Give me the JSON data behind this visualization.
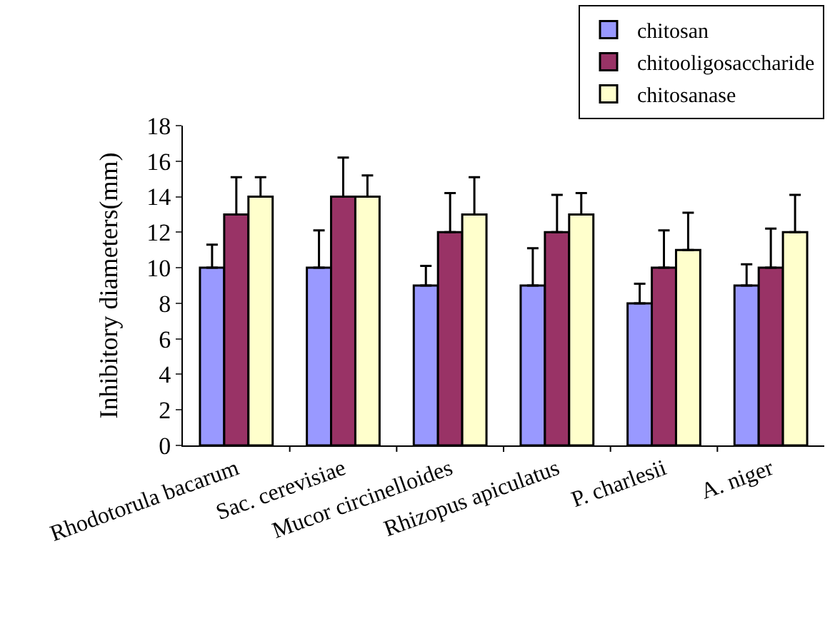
{
  "chart_data": {
    "type": "bar",
    "ylabel": "Inhibitory diameters(mm)",
    "categories": [
      "Rhodotorula bacarum",
      "Sac. cerevisiae",
      "Mucor circinelloides",
      "Rhizopus apiculatus",
      "P. charlesii",
      "A. niger"
    ],
    "series": [
      {
        "name": "chitosan",
        "color": "#9999ff",
        "values": [
          10,
          10,
          9,
          9,
          8,
          9
        ],
        "errors": [
          [
            10,
            11.3
          ],
          [
            10,
            12.1
          ],
          [
            9,
            10.1
          ],
          [
            9,
            11.1
          ],
          [
            8,
            9.1
          ],
          [
            9,
            10.2
          ]
        ]
      },
      {
        "name": "chitooligosaccharide",
        "color": "#993366",
        "values": [
          13,
          14,
          12,
          12,
          10,
          10
        ],
        "errors": [
          [
            13,
            15.1
          ],
          [
            14,
            16.2
          ],
          [
            12,
            14.2
          ],
          [
            12,
            14.1
          ],
          [
            10,
            12.1
          ],
          [
            10,
            12.2
          ]
        ]
      },
      {
        "name": "chitosanase",
        "color": "#ffffcc",
        "values": [
          14,
          14,
          13,
          13,
          11,
          12
        ],
        "errors": [
          [
            14,
            15.1
          ],
          [
            14,
            15.2
          ],
          [
            13,
            15.1
          ],
          [
            13,
            14.2
          ],
          [
            11,
            13.1
          ],
          [
            12,
            14.1
          ]
        ]
      }
    ],
    "ylim": [
      0,
      18
    ],
    "yticks": [
      0,
      2,
      4,
      6,
      8,
      10,
      12,
      14,
      16,
      18
    ],
    "grid": false,
    "legend": "top right"
  }
}
